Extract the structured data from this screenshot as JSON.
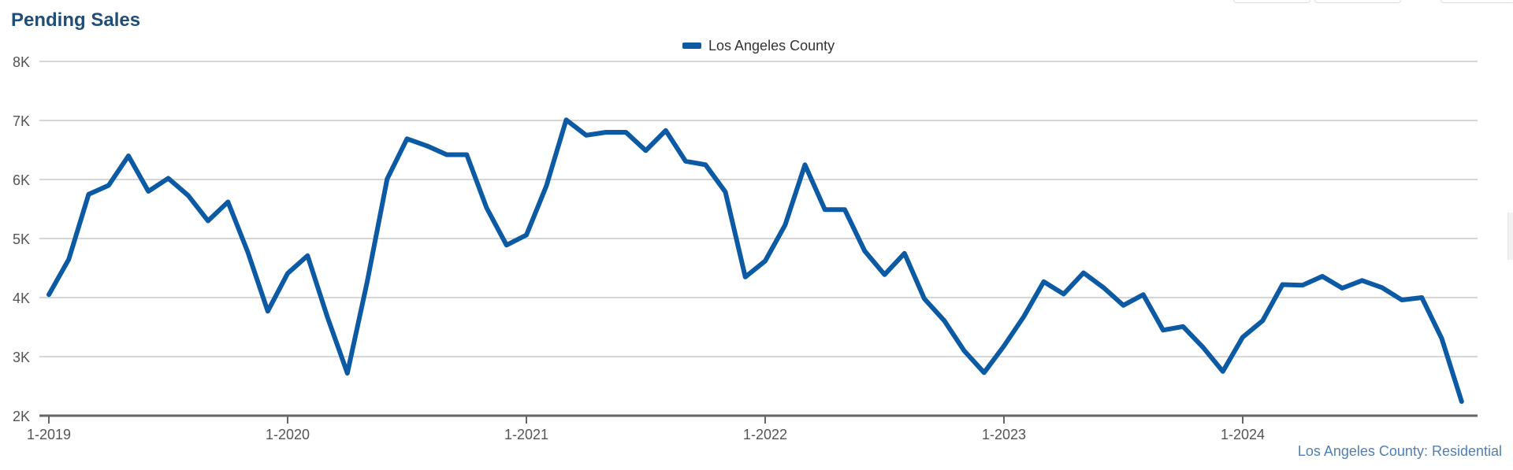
{
  "title": "Pending Sales",
  "source_label": "Los Angeles County: Residential",
  "colors": {
    "series": "#0b5aa3",
    "title": "#1f4e79",
    "grid": "#c8c8c8",
    "axis": "#666666",
    "source": "#4f7fb5"
  },
  "chart_data": {
    "type": "line",
    "title": "Pending Sales",
    "legend": {
      "placement": "top-center"
    },
    "grid": true,
    "ylim": [
      2000,
      8000
    ],
    "y_ticks": [
      {
        "value": 2000,
        "label": "2K"
      },
      {
        "value": 3000,
        "label": "3K"
      },
      {
        "value": 4000,
        "label": "4K"
      },
      {
        "value": 5000,
        "label": "5K"
      },
      {
        "value": 6000,
        "label": "6K"
      },
      {
        "value": 7000,
        "label": "7K"
      },
      {
        "value": 8000,
        "label": "8K"
      }
    ],
    "x_ticks": [
      "1-2019",
      "1-2020",
      "1-2021",
      "1-2022",
      "1-2023",
      "1-2024"
    ],
    "x_start": "1-2019",
    "x_end": "12-2024",
    "x": [
      "1-2019",
      "2-2019",
      "3-2019",
      "4-2019",
      "5-2019",
      "6-2019",
      "7-2019",
      "8-2019",
      "9-2019",
      "10-2019",
      "11-2019",
      "12-2019",
      "1-2020",
      "2-2020",
      "3-2020",
      "4-2020",
      "5-2020",
      "6-2020",
      "7-2020",
      "8-2020",
      "9-2020",
      "10-2020",
      "11-2020",
      "12-2020",
      "1-2021",
      "2-2021",
      "3-2021",
      "4-2021",
      "5-2021",
      "6-2021",
      "7-2021",
      "8-2021",
      "9-2021",
      "10-2021",
      "11-2021",
      "12-2021",
      "1-2022",
      "2-2022",
      "3-2022",
      "4-2022",
      "5-2022",
      "6-2022",
      "7-2022",
      "8-2022",
      "9-2022",
      "10-2022",
      "11-2022",
      "12-2022",
      "1-2023",
      "2-2023",
      "3-2023",
      "4-2023",
      "5-2023",
      "6-2023",
      "7-2023",
      "8-2023",
      "9-2023",
      "10-2023",
      "11-2023",
      "12-2023",
      "1-2024",
      "2-2024",
      "3-2024",
      "4-2024",
      "5-2024",
      "6-2024",
      "7-2024",
      "8-2024",
      "9-2024",
      "10-2024",
      "11-2024",
      "12-2024"
    ],
    "series": [
      {
        "name": "Los Angeles County",
        "values": [
          4050,
          4650,
          5750,
          5900,
          6400,
          5800,
          6020,
          5730,
          5300,
          5620,
          4770,
          3770,
          4410,
          4710,
          3670,
          2720,
          4270,
          6010,
          6690,
          6570,
          6420,
          6420,
          5520,
          4890,
          5060,
          5890,
          7010,
          6750,
          6800,
          6800,
          6490,
          6830,
          6310,
          6250,
          5790,
          4350,
          4620,
          5230,
          6250,
          5490,
          5490,
          4790,
          4390,
          4750,
          3980,
          3610,
          3100,
          2730,
          3180,
          3680,
          4270,
          4060,
          4420,
          4170,
          3870,
          4050,
          3450,
          3510,
          3160,
          2750,
          3330,
          3610,
          4220,
          4210,
          4360,
          4160,
          4290,
          4170,
          3960,
          4000,
          3310,
          2240
        ]
      }
    ]
  }
}
